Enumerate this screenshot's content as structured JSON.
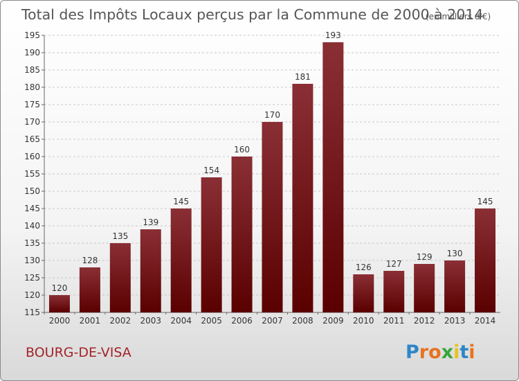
{
  "chart_data": {
    "type": "bar",
    "title": "Total des Impôts Locaux perçus par la Commune de 2000 à 2014",
    "title_unit": "(en milliers d'€)",
    "categories": [
      "2000",
      "2001",
      "2002",
      "2003",
      "2004",
      "2005",
      "2006",
      "2007",
      "2008",
      "2009",
      "2010",
      "2011",
      "2012",
      "2013",
      "2014"
    ],
    "values": [
      120,
      128,
      135,
      139,
      145,
      154,
      160,
      170,
      181,
      193,
      126,
      127,
      129,
      130,
      145
    ],
    "ylim": [
      115,
      195
    ],
    "yticks": [
      115,
      120,
      125,
      130,
      135,
      140,
      145,
      150,
      155,
      160,
      165,
      170,
      175,
      180,
      185,
      190,
      195
    ],
    "grid": true,
    "bar_color_top": "#8a2f35",
    "bar_color_bottom": "#5a0000"
  },
  "commune": "BOURG-DE-VISA",
  "brand": {
    "letters": [
      "P",
      "r",
      "o",
      "x",
      "i",
      "t",
      "i"
    ],
    "colors": [
      "#2e86c9",
      "#e8731f",
      "#e8731f",
      "#3aa63a",
      "#e8c21f",
      "#2e86c9",
      "#e8731f"
    ]
  }
}
